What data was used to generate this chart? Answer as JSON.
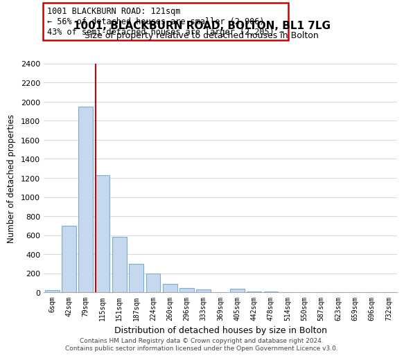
{
  "title": "1001, BLACKBURN ROAD, BOLTON, BL1 7LG",
  "subtitle": "Size of property relative to detached houses in Bolton",
  "xlabel": "Distribution of detached houses by size in Bolton",
  "ylabel": "Number of detached properties",
  "bar_labels": [
    "6sqm",
    "42sqm",
    "79sqm",
    "115sqm",
    "151sqm",
    "187sqm",
    "224sqm",
    "260sqm",
    "296sqm",
    "333sqm",
    "369sqm",
    "405sqm",
    "442sqm",
    "478sqm",
    "514sqm",
    "550sqm",
    "587sqm",
    "623sqm",
    "659sqm",
    "696sqm",
    "732sqm"
  ],
  "bar_values": [
    20,
    700,
    1950,
    1230,
    580,
    300,
    200,
    85,
    45,
    30,
    0,
    35,
    10,
    5,
    2,
    0,
    0,
    0,
    0,
    0,
    0
  ],
  "bar_color": "#c5d8ee",
  "bar_edge_color": "#7aafd4",
  "vline_x_index": 3,
  "vline_color": "#cc0000",
  "annotation_text": "1001 BLACKBURN ROAD: 121sqm\n← 56% of detached houses are smaller (2,906)\n43% of semi-detached houses are larger (2,205) →",
  "annotation_box_color": "#ffffff",
  "annotation_box_edge_color": "#cc0000",
  "ylim": [
    0,
    2400
  ],
  "yticks": [
    0,
    200,
    400,
    600,
    800,
    1000,
    1200,
    1400,
    1600,
    1800,
    2000,
    2200,
    2400
  ],
  "footer_text": "Contains HM Land Registry data © Crown copyright and database right 2024.\nContains public sector information licensed under the Open Government Licence v3.0.",
  "background_color": "#ffffff",
  "grid_color": "#d0d8e4"
}
